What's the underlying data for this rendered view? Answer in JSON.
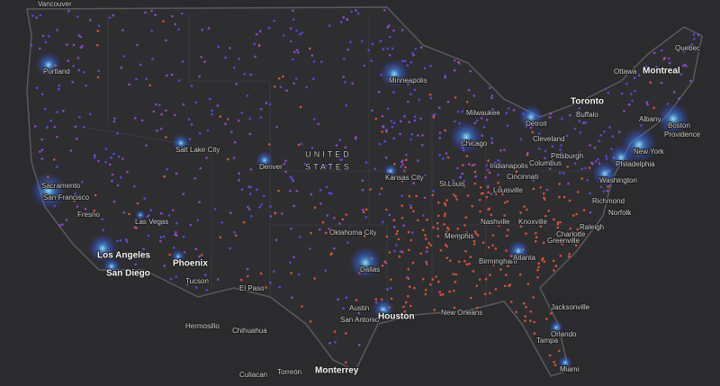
{
  "map": {
    "country_label": [
      "UNITED",
      "STATES"
    ],
    "cities": [
      "Vancouver",
      "Portland",
      "Sacramento",
      "San Francisco",
      "Fresno",
      "Las Vegas",
      "Los Angeles",
      "San Diego",
      "Phoenix",
      "Tucson",
      "El Paso",
      "Hermosillo",
      "Chihuahua",
      "Culiacan",
      "Torreón",
      "Monterrey",
      "San Antonio",
      "Austin",
      "Houston",
      "New Orleans",
      "Dallas",
      "Oklahoma City",
      "Kansas City",
      "St Louis",
      "Denver",
      "Salt Lake City",
      "Minneapolis",
      "Milwaukee",
      "Chicago",
      "Detroit",
      "Cleveland",
      "Indianapolis",
      "Columbus",
      "Cincinnati",
      "Louisville",
      "Nashville",
      "Knoxville",
      "Memphis",
      "Birmingham",
      "Atlanta",
      "Greenville",
      "Charlotte",
      "Raleigh",
      "Richmond",
      "Norfolk",
      "Washington",
      "Philadelphia",
      "New York",
      "Boston",
      "Albany",
      "Providence",
      "Pittsburgh",
      "Buffalo",
      "Toronto",
      "Ottawa",
      "Montreal",
      "Quebec",
      "Jacksonville",
      "Orlando",
      "Tampa",
      "Miami"
    ]
  }
}
